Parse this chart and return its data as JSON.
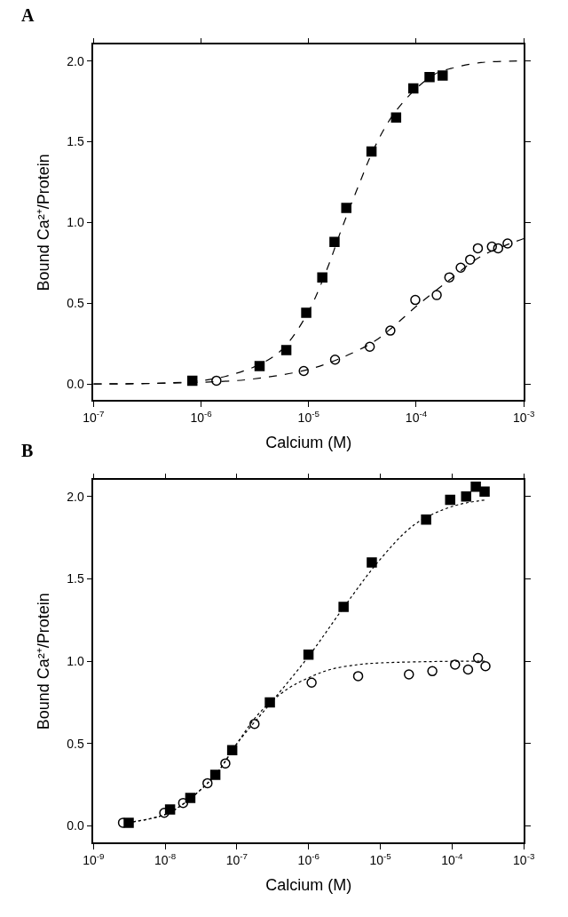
{
  "chart_data": [
    {
      "type": "scatter",
      "title": "A",
      "xlabel": "Calcium (M)",
      "ylabel": "Bound Ca²⁺/Protein",
      "log": "x",
      "xlim": [
        1e-07,
        0.001
      ],
      "xticks": [
        {
          "value": 1e-07,
          "label": "10$^{-7}$"
        },
        {
          "value": 1e-06,
          "label": "10$^{-6}$"
        },
        {
          "value": 1e-05,
          "label": "10$^{-5}$"
        },
        {
          "value": 0.0001,
          "label": "10$^{-4}$"
        },
        {
          "value": 0.001,
          "label": "10$^{-3}$"
        }
      ],
      "ylim": [
        -0.1,
        2.1
      ],
      "yticks": [
        {
          "value": 0,
          "label": "0.0"
        },
        {
          "value": 0.5,
          "label": "0.5"
        },
        {
          "value": 1,
          "label": "1.0"
        },
        {
          "value": 1.5,
          "label": "1.5"
        },
        {
          "value": 2,
          "label": "2.0"
        }
      ],
      "series": [
        {
          "type": "line",
          "color": "#000000",
          "marker": "none",
          "line_style": "dashed",
          "x": [
            1e-07,
            3e-07,
            1e-06,
            2e-06,
            4e-06,
            6e-06,
            1e-05,
            1.5e-05,
            2e-05,
            3e-05,
            4e-05,
            6e-05,
            0.0001,
            0.00015,
            0.0002,
            0.0004,
            0.001
          ],
          "values": [
            0,
            0.002,
            0.02,
            0.06,
            0.14,
            0.23,
            0.45,
            0.72,
            0.95,
            1.25,
            1.45,
            1.66,
            1.83,
            1.92,
            1.95,
            1.99,
            2.0
          ]
        },
        {
          "type": "line",
          "color": "#000000",
          "marker": "none",
          "line_style": "dashed",
          "x": [
            1e-07,
            1e-06,
            3e-06,
            1e-05,
            2e-05,
            4e-05,
            6e-05,
            0.0001,
            0.0002,
            0.0004,
            0.001
          ],
          "values": [
            0,
            0.01,
            0.03,
            0.09,
            0.16,
            0.26,
            0.35,
            0.48,
            0.64,
            0.79,
            0.9
          ]
        },
        {
          "color": "#000000",
          "marker": "square",
          "x": [
            8.3e-07,
            3.5e-06,
            6.2e-06,
            9.5e-06,
            1.34e-05,
            1.74e-05,
            2.24e-05,
            3.84e-05,
            6.5e-05,
            9.4e-05,
            0.000133,
            0.000176
          ],
          "values": [
            0.02,
            0.11,
            0.21,
            0.44,
            0.66,
            0.88,
            1.09,
            1.44,
            1.65,
            1.83,
            1.9,
            1.91
          ]
        },
        {
          "color": "#000000",
          "marker": "circle",
          "x": [
            1.39e-06,
            9e-06,
            1.76e-05,
            3.7e-05,
            5.75e-05,
            9.8e-05,
            0.000155,
            0.000203,
            0.000259,
            0.000317,
            0.000374,
            0.000505,
            0.000577,
            0.000706
          ],
          "values": [
            0.02,
            0.08,
            0.15,
            0.23,
            0.33,
            0.52,
            0.55,
            0.66,
            0.72,
            0.77,
            0.84,
            0.85,
            0.84,
            0.87
          ]
        }
      ]
    },
    {
      "type": "scatter",
      "title": "B",
      "xlabel": "Calcium (M)",
      "ylabel": "Bound Ca²⁺/Protein",
      "log": "x",
      "xlim": [
        1e-09,
        0.001
      ],
      "xticks": [
        {
          "value": 1e-09,
          "label": "10$^{-9}$"
        },
        {
          "value": 1e-08,
          "label": "10$^{-8}$"
        },
        {
          "value": 1e-07,
          "label": "10$^{-7}$"
        },
        {
          "value": 1e-06,
          "label": "10$^{-6}$"
        },
        {
          "value": 1e-05,
          "label": "10$^{-5}$"
        },
        {
          "value": 0.0001,
          "label": "10$^{-4}$"
        },
        {
          "value": 0.001,
          "label": "10$^{-3}$"
        }
      ],
      "ylim": [
        -0.1,
        2.1
      ],
      "yticks": [
        {
          "value": 0,
          "label": "0.0"
        },
        {
          "value": 0.5,
          "label": "0.5"
        },
        {
          "value": 1,
          "label": "1.0"
        },
        {
          "value": 1.5,
          "label": "1.5"
        },
        {
          "value": 2,
          "label": "2.0"
        }
      ],
      "series": [
        {
          "type": "line",
          "color": "#000000",
          "marker": "none",
          "line_style": "dotted",
          "x": [
            3e-09,
            1e-08,
            2e-08,
            5e-08,
            1e-07,
            3e-07,
            1e-06,
            3e-06,
            1e-05,
            3e-05,
            0.0001,
            0.0003
          ],
          "values": [
            0.02,
            0.07,
            0.15,
            0.31,
            0.5,
            0.75,
            1.03,
            1.32,
            1.62,
            1.83,
            1.94,
            1.98
          ]
        },
        {
          "type": "line",
          "color": "#000000",
          "marker": "none",
          "line_style": "dotted",
          "x": [
            3e-09,
            1e-08,
            2e-08,
            5e-08,
            1e-07,
            2e-07,
            5e-07,
            1e-06,
            2e-06,
            5e-06,
            1e-05,
            0.0001,
            0.0003
          ],
          "values": [
            0.02,
            0.07,
            0.15,
            0.31,
            0.5,
            0.68,
            0.83,
            0.9,
            0.95,
            0.98,
            0.99,
            1.0,
            1.0
          ]
        },
        {
          "color": "#000000",
          "marker": "square",
          "x": [
            3.1e-09,
            1.17e-08,
            2.24e-08,
            5e-08,
            8.6e-08,
            2.88e-07,
            9.95e-07,
            3.07e-06,
            7.6e-06,
            4.34e-05,
            9.4e-05,
            0.000157,
            0.000214,
            0.000284
          ],
          "values": [
            0.02,
            0.1,
            0.17,
            0.31,
            0.46,
            0.75,
            1.04,
            1.33,
            1.6,
            1.86,
            1.98,
            2.0,
            2.06,
            2.03
          ]
        },
        {
          "color": "#000000",
          "marker": "circle",
          "x": [
            2.58e-09,
            9.7e-09,
            1.78e-08,
            3.89e-08,
            6.9e-08,
            1.76e-07,
            1.1e-06,
            4.9e-06,
            2.5e-05,
            5.3e-05,
            0.00011,
            0.000167,
            0.00023,
            0.000292
          ],
          "values": [
            0.02,
            0.08,
            0.14,
            0.26,
            0.38,
            0.62,
            0.87,
            0.91,
            0.92,
            0.94,
            0.98,
            0.95,
            1.02,
            0.97
          ]
        }
      ]
    }
  ]
}
